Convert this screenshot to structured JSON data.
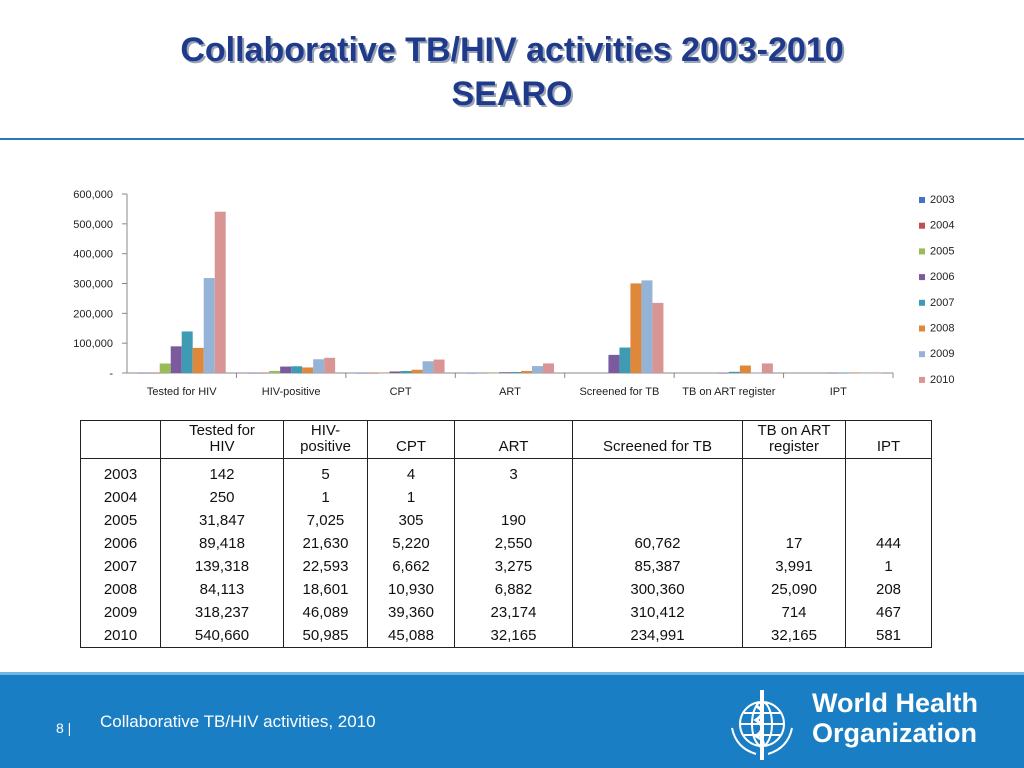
{
  "slide": {
    "title_line1": "Collaborative TB/HIV activities 2003-2010",
    "title_line2": "SEARO",
    "footer_text": "Collaborative TB/HIV activities, 2010",
    "page_number": "8 |",
    "org_line1": "World Health",
    "org_line2": "Organization",
    "accent_color": "#1a7ec4",
    "title_color": "#1f3a8a"
  },
  "chart_data": {
    "type": "bar",
    "title": "",
    "xlabel": "",
    "ylabel": "",
    "categories": [
      "Tested for HIV",
      "HIV-positive",
      "CPT",
      "ART",
      "Screened for TB",
      "TB on ART register",
      "IPT"
    ],
    "ylim": [
      0,
      600000
    ],
    "yticks": [
      0,
      100000,
      200000,
      300000,
      400000,
      500000,
      600000
    ],
    "ytick_labels": [
      "-",
      "100,000",
      "200,000",
      "300,000",
      "400,000",
      "500,000",
      "600,000"
    ],
    "legend_position": "right",
    "grid": false,
    "series": [
      {
        "name": "2003",
        "color": "#4472c4",
        "values": [
          142,
          5,
          4,
          3,
          0,
          0,
          0
        ]
      },
      {
        "name": "2004",
        "color": "#c0504d",
        "values": [
          250,
          1,
          1,
          0,
          0,
          0,
          0
        ]
      },
      {
        "name": "2005",
        "color": "#9bbb59",
        "values": [
          31847,
          7025,
          305,
          190,
          0,
          0,
          0
        ]
      },
      {
        "name": "2006",
        "color": "#7c5a9e",
        "values": [
          89418,
          21630,
          5220,
          2550,
          60762,
          17,
          444
        ]
      },
      {
        "name": "2007",
        "color": "#3f9bb3",
        "values": [
          139318,
          22593,
          6662,
          3275,
          85387,
          3991,
          1
        ]
      },
      {
        "name": "2008",
        "color": "#e0883a",
        "values": [
          84113,
          18601,
          10930,
          6882,
          300360,
          25090,
          208
        ]
      },
      {
        "name": "2009",
        "color": "#95b3d7",
        "values": [
          318237,
          46089,
          39360,
          23174,
          310412,
          714,
          467
        ]
      },
      {
        "name": "2010",
        "color": "#d99594",
        "values": [
          540660,
          50985,
          45088,
          32165,
          234991,
          32165,
          581
        ]
      }
    ]
  },
  "table": {
    "headers": [
      "",
      "Tested for HIV",
      "HIV-positive",
      "CPT",
      "ART",
      "Screened for TB",
      "TB on ART register",
      "IPT"
    ],
    "rows": [
      [
        "2003",
        "142",
        "5",
        "4",
        "3",
        "",
        "",
        ""
      ],
      [
        "2004",
        "250",
        "1",
        "1",
        "",
        "",
        "",
        ""
      ],
      [
        "2005",
        "31,847",
        "7,025",
        "305",
        "190",
        "",
        "",
        ""
      ],
      [
        "2006",
        "89,418",
        "21,630",
        "5,220",
        "2,550",
        "60,762",
        "17",
        "444"
      ],
      [
        "2007",
        "139,318",
        "22,593",
        "6,662",
        "3,275",
        "85,387",
        "3,991",
        "1"
      ],
      [
        "2008",
        "84,113",
        "18,601",
        "10,930",
        "6,882",
        "300,360",
        "25,090",
        "208"
      ],
      [
        "2009",
        "318,237",
        "46,089",
        "39,360",
        "23,174",
        "310,412",
        "714",
        "467"
      ],
      [
        "2010",
        "540,660",
        "50,985",
        "45,088",
        "32,165",
        "234,991",
        "32,165",
        "581"
      ]
    ]
  }
}
